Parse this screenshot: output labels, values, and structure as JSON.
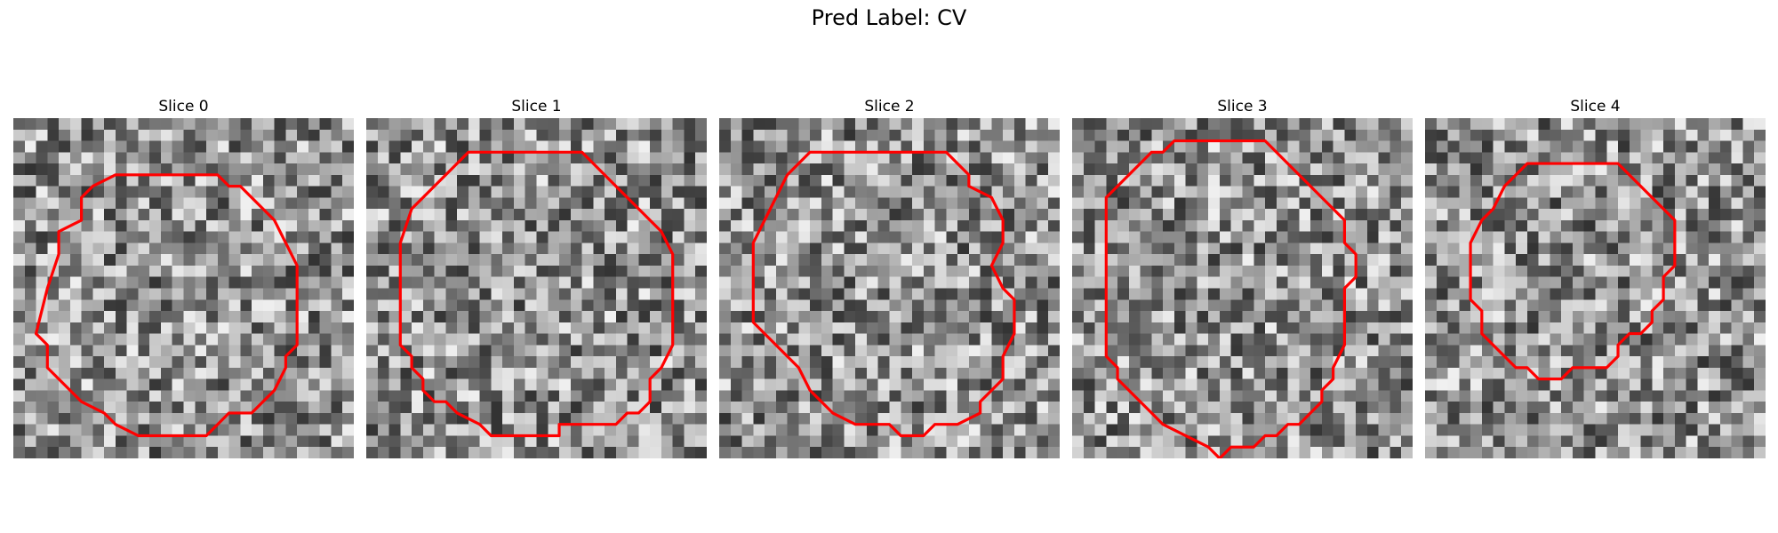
{
  "figure": {
    "title": "Pred Label: CV"
  },
  "contour_color": "#ff0000",
  "colormap": "gray",
  "grid_size": 30,
  "panels": [
    {
      "title": "Slice 0",
      "contour": [
        [
          10,
          5
        ],
        [
          18,
          5
        ],
        [
          19,
          6
        ],
        [
          20,
          6
        ],
        [
          22,
          8
        ],
        [
          23,
          9
        ],
        [
          24,
          11
        ],
        [
          25,
          13
        ],
        [
          25,
          20
        ],
        [
          24,
          21
        ],
        [
          24,
          22
        ],
        [
          23,
          24
        ],
        [
          21,
          26
        ],
        [
          19,
          26
        ],
        [
          18,
          27
        ],
        [
          17,
          28
        ],
        [
          11,
          28
        ],
        [
          9,
          27
        ],
        [
          8,
          26
        ],
        [
          6,
          25
        ],
        [
          5,
          24
        ],
        [
          4,
          23
        ],
        [
          3,
          22
        ],
        [
          3,
          21
        ],
        [
          3,
          20
        ],
        [
          2,
          19
        ],
        [
          3,
          15
        ],
        [
          4,
          12
        ],
        [
          4,
          10
        ],
        [
          6,
          9
        ],
        [
          6,
          7
        ],
        [
          7,
          6
        ],
        [
          9,
          5
        ]
      ],
      "seed": 11
    },
    {
      "title": "Slice 1",
      "contour": [
        [
          9,
          3
        ],
        [
          19,
          3
        ],
        [
          22,
          6
        ],
        [
          24,
          8
        ],
        [
          26,
          10
        ],
        [
          27,
          12
        ],
        [
          27,
          15
        ],
        [
          27,
          17
        ],
        [
          27,
          20
        ],
        [
          26,
          22
        ],
        [
          25,
          23
        ],
        [
          25,
          25
        ],
        [
          24,
          26
        ],
        [
          23,
          26
        ],
        [
          22,
          27
        ],
        [
          21,
          27
        ],
        [
          20,
          27
        ],
        [
          17,
          27
        ],
        [
          17,
          28
        ],
        [
          11,
          28
        ],
        [
          10,
          27
        ],
        [
          8,
          26
        ],
        [
          7,
          25
        ],
        [
          6,
          25
        ],
        [
          5,
          24
        ],
        [
          5,
          23
        ],
        [
          4,
          22
        ],
        [
          4,
          21
        ],
        [
          3,
          20
        ],
        [
          3,
          19
        ],
        [
          3,
          11
        ],
        [
          4,
          8
        ],
        [
          7,
          5
        ]
      ],
      "seed": 23
    },
    {
      "title": "Slice 2",
      "contour": [
        [
          8,
          3
        ],
        [
          20,
          3
        ],
        [
          21,
          4
        ],
        [
          22,
          5
        ],
        [
          22,
          6
        ],
        [
          24,
          7
        ],
        [
          25,
          9
        ],
        [
          25,
          11
        ],
        [
          24,
          13
        ],
        [
          25,
          15
        ],
        [
          26,
          16
        ],
        [
          26,
          19
        ],
        [
          25,
          21
        ],
        [
          25,
          23
        ],
        [
          23,
          25
        ],
        [
          23,
          26
        ],
        [
          21,
          27
        ],
        [
          19,
          27
        ],
        [
          18,
          28
        ],
        [
          16,
          28
        ],
        [
          15,
          27
        ],
        [
          12,
          27
        ],
        [
          10,
          26
        ],
        [
          9,
          25
        ],
        [
          8,
          24
        ],
        [
          7,
          22
        ],
        [
          6,
          21
        ],
        [
          5,
          20
        ],
        [
          4,
          19
        ],
        [
          3,
          18
        ],
        [
          3,
          11
        ],
        [
          4,
          9
        ],
        [
          5,
          7
        ],
        [
          6,
          5
        ]
      ],
      "seed": 37
    },
    {
      "title": "Slice 3",
      "contour": [
        [
          9,
          2
        ],
        [
          17,
          2
        ],
        [
          19,
          4
        ],
        [
          20,
          5
        ],
        [
          21,
          6
        ],
        [
          22,
          7
        ],
        [
          23,
          8
        ],
        [
          24,
          9
        ],
        [
          24,
          11
        ],
        [
          25,
          12
        ],
        [
          25,
          14
        ],
        [
          24,
          15
        ],
        [
          24,
          16
        ],
        [
          24,
          20
        ],
        [
          23,
          22
        ],
        [
          23,
          23
        ],
        [
          22,
          24
        ],
        [
          22,
          25
        ],
        [
          21,
          26
        ],
        [
          20,
          27
        ],
        [
          19,
          27
        ],
        [
          18,
          28
        ],
        [
          17,
          28
        ],
        [
          16,
          29
        ],
        [
          14,
          29
        ],
        [
          13,
          30
        ],
        [
          12,
          29
        ],
        [
          10,
          28
        ],
        [
          8,
          27
        ],
        [
          7,
          26
        ],
        [
          6,
          25
        ],
        [
          5,
          24
        ],
        [
          4,
          23
        ],
        [
          4,
          22
        ],
        [
          3,
          21
        ],
        [
          3,
          15
        ],
        [
          3,
          7
        ],
        [
          4,
          6
        ],
        [
          5,
          5
        ],
        [
          6,
          4
        ],
        [
          7,
          3
        ],
        [
          8,
          3
        ]
      ],
      "seed": 53
    },
    {
      "title": "Slice 4",
      "contour": [
        [
          9,
          4
        ],
        [
          17,
          4
        ],
        [
          18,
          5
        ],
        [
          19,
          6
        ],
        [
          20,
          7
        ],
        [
          21,
          8
        ],
        [
          22,
          9
        ],
        [
          22,
          13
        ],
        [
          21,
          14
        ],
        [
          21,
          16
        ],
        [
          20,
          17
        ],
        [
          20,
          18
        ],
        [
          19,
          19
        ],
        [
          18,
          19
        ],
        [
          17,
          20
        ],
        [
          17,
          21
        ],
        [
          16,
          22
        ],
        [
          15,
          22
        ],
        [
          14,
          22
        ],
        [
          13,
          22
        ],
        [
          12,
          23
        ],
        [
          11,
          23
        ],
        [
          10,
          23
        ],
        [
          9,
          22
        ],
        [
          8,
          22
        ],
        [
          7,
          21
        ],
        [
          6,
          20
        ],
        [
          5,
          19
        ],
        [
          5,
          18
        ],
        [
          5,
          17
        ],
        [
          4,
          16
        ],
        [
          4,
          11
        ],
        [
          5,
          9
        ],
        [
          6,
          8
        ],
        [
          7,
          6
        ],
        [
          8,
          5
        ]
      ],
      "seed": 71
    }
  ]
}
